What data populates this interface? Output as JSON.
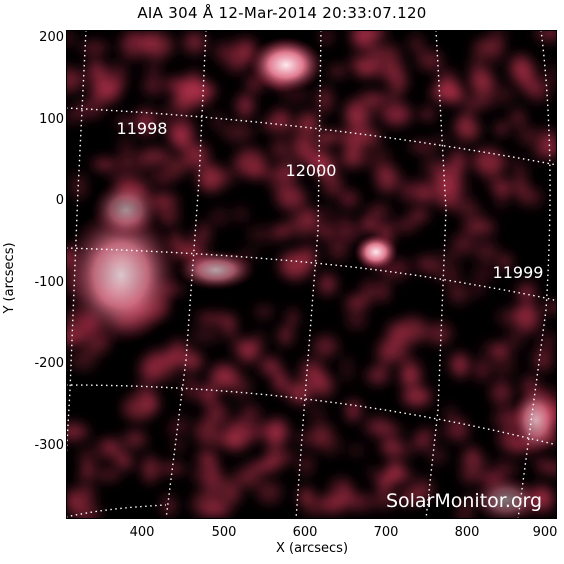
{
  "title": "AIA 304 Å 12-Mar-2014 20:33:07.120",
  "axes": {
    "xlabel": "X (arcsecs)",
    "ylabel": "Y (arcsecs)",
    "xticks": [
      "400",
      "500",
      "600",
      "700",
      "800",
      "900"
    ],
    "yticks": [
      "200",
      "100",
      "0",
      "-100",
      "-200",
      "-300"
    ]
  },
  "regions": {
    "r11998": "11998",
    "r12000": "12000",
    "r11999": "11999"
  },
  "watermark": "SolarMonitor.org",
  "colors": {
    "background": "#000000",
    "emission": "#b0304a",
    "bright": "#f0c8d0",
    "grid": "#ffffff"
  }
}
